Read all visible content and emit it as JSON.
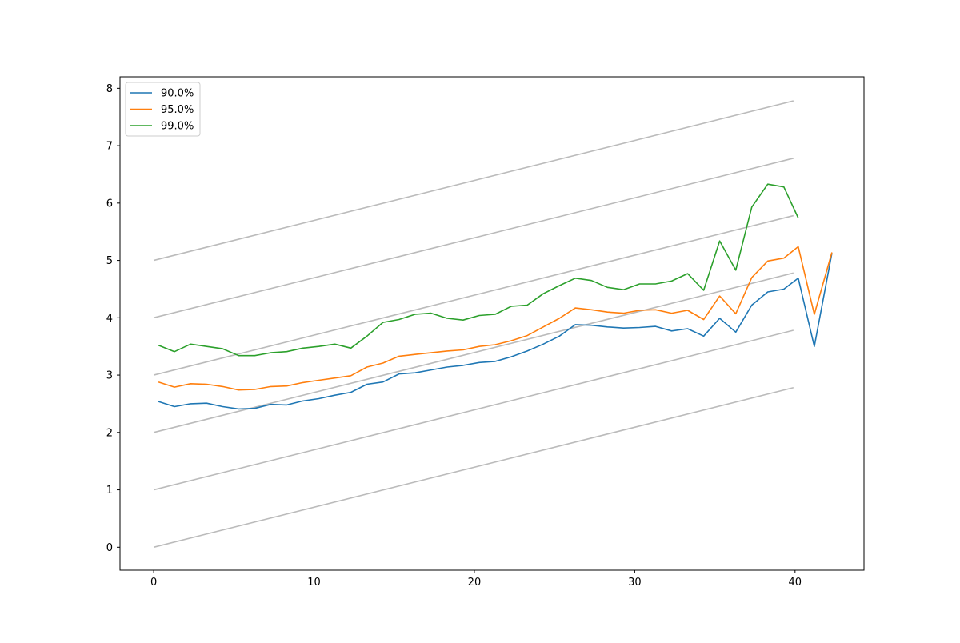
{
  "chart_data": {
    "type": "line",
    "title": "",
    "xlabel": "",
    "ylabel": "",
    "xlim": [
      -2.1,
      44.3
    ],
    "ylim": [
      -0.4,
      8.2
    ],
    "x_ticks": [
      0,
      10,
      20,
      30,
      40
    ],
    "y_ticks": [
      0,
      1,
      2,
      3,
      4,
      5,
      6,
      7,
      8
    ],
    "grid": false,
    "legend_position": "top-left",
    "reference_lines": {
      "color": "#bbbbbb",
      "x_range": [
        0,
        39.9
      ],
      "slope": 0.0697,
      "intercepts": [
        0,
        1,
        2,
        3,
        4,
        5
      ]
    },
    "series": [
      {
        "name": "90.0%",
        "color": "#1f77b4",
        "x": [
          0.3,
          1.3,
          2.3,
          3.3,
          4.3,
          5.3,
          6.3,
          7.3,
          8.3,
          9.3,
          10.3,
          11.3,
          12.3,
          13.3,
          14.3,
          15.3,
          16.3,
          17.3,
          18.3,
          19.3,
          20.3,
          21.3,
          22.3,
          23.3,
          24.3,
          25.3,
          26.3,
          27.3,
          28.3,
          29.3,
          30.3,
          31.3,
          32.3,
          33.3,
          34.3,
          35.3,
          36.3,
          37.3,
          38.3,
          39.3,
          40.2,
          41.2,
          42.3
        ],
        "y": [
          2.54,
          2.45,
          2.5,
          2.51,
          2.45,
          2.41,
          2.42,
          2.49,
          2.48,
          2.55,
          2.59,
          2.65,
          2.7,
          2.84,
          2.88,
          3.02,
          3.04,
          3.09,
          3.14,
          3.17,
          3.22,
          3.24,
          3.32,
          3.42,
          3.54,
          3.68,
          3.88,
          3.87,
          3.84,
          3.82,
          3.83,
          3.85,
          3.77,
          3.81,
          3.68,
          3.99,
          3.75,
          4.22,
          4.45,
          4.5,
          4.69,
          3.5,
          5.13
        ]
      },
      {
        "name": "95.0%",
        "color": "#ff7f0e",
        "x": [
          0.3,
          1.3,
          2.3,
          3.3,
          4.3,
          5.3,
          6.3,
          7.3,
          8.3,
          9.3,
          10.3,
          11.3,
          12.3,
          13.3,
          14.3,
          15.3,
          16.3,
          17.3,
          18.3,
          19.3,
          20.3,
          21.3,
          22.3,
          23.3,
          24.3,
          25.3,
          26.3,
          27.3,
          28.3,
          29.3,
          30.3,
          31.3,
          32.3,
          33.3,
          34.3,
          35.3,
          36.3,
          37.3,
          38.3,
          39.3,
          40.2,
          41.2,
          42.3
        ],
        "y": [
          2.88,
          2.79,
          2.85,
          2.84,
          2.8,
          2.74,
          2.75,
          2.8,
          2.81,
          2.87,
          2.91,
          2.95,
          2.99,
          3.14,
          3.21,
          3.33,
          3.36,
          3.39,
          3.42,
          3.44,
          3.5,
          3.53,
          3.6,
          3.69,
          3.84,
          3.99,
          4.17,
          4.14,
          4.1,
          4.08,
          4.13,
          4.14,
          4.08,
          4.13,
          3.97,
          4.38,
          4.07,
          4.7,
          4.99,
          5.04,
          5.24,
          4.06,
          5.14
        ]
      },
      {
        "name": "99.0%",
        "color": "#2ca02c",
        "x": [
          0.3,
          1.3,
          2.3,
          3.3,
          4.3,
          5.3,
          6.3,
          7.3,
          8.3,
          9.3,
          10.3,
          11.3,
          12.3,
          13.3,
          14.3,
          15.3,
          16.3,
          17.3,
          18.3,
          19.3,
          20.3,
          21.3,
          22.3,
          23.3,
          24.3,
          25.3,
          26.3,
          27.3,
          28.3,
          29.3,
          30.3,
          31.3,
          32.3,
          33.3,
          34.3,
          35.3,
          36.3,
          37.3,
          38.3,
          39.3,
          40.2
        ],
        "y": [
          3.52,
          3.41,
          3.54,
          3.5,
          3.46,
          3.34,
          3.34,
          3.39,
          3.41,
          3.47,
          3.5,
          3.54,
          3.47,
          3.68,
          3.92,
          3.97,
          4.06,
          4.08,
          3.99,
          3.96,
          4.04,
          4.06,
          4.2,
          4.22,
          4.42,
          4.56,
          4.69,
          4.65,
          4.53,
          4.49,
          4.59,
          4.59,
          4.64,
          4.77,
          4.48,
          5.34,
          4.83,
          5.93,
          6.33,
          6.28,
          5.74
        ]
      }
    ]
  }
}
